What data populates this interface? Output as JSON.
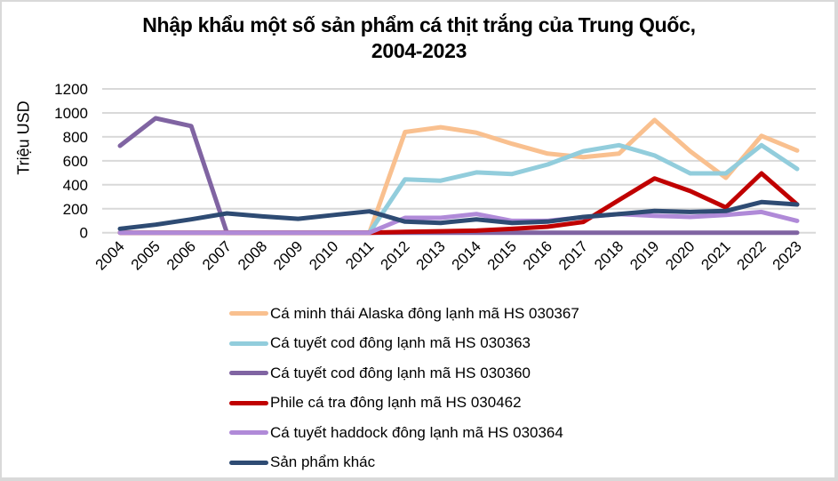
{
  "chart_data": {
    "type": "line",
    "title": "Nhập khẩu một số sản phẩm cá thịt trắng của Trung Quốc, 2004-2023",
    "title_lines": [
      "Nhập khẩu một số sản phẩm cá thịt trắng của Trung Quốc,",
      "2004-2023"
    ],
    "xlabel": "",
    "ylabel": "Triệu USD",
    "ylim": [
      0,
      1200
    ],
    "yticks": [
      0,
      200,
      400,
      600,
      800,
      1000,
      1200
    ],
    "grid": true,
    "legend_position": "bottom",
    "x": [
      "2004",
      "2005",
      "2006",
      "2007",
      "2008",
      "2009",
      "2010",
      "2011",
      "2012",
      "2013",
      "2014",
      "2015",
      "2016",
      "2017",
      "2018",
      "2019",
      "2020",
      "2021",
      "2022",
      "2023"
    ],
    "series": [
      {
        "name": "Cá minh thái Alaska đông lạnh mã HS 030367",
        "color": "#F9C08F",
        "values": [
          0,
          0,
          0,
          0,
          0,
          0,
          0,
          0,
          840,
          880,
          835,
          742,
          660,
          630,
          660,
          940,
          680,
          458,
          808,
          686
        ]
      },
      {
        "name": "Cá tuyết cod đông lạnh mã HS 030363",
        "color": "#92CDDC",
        "values": [
          0,
          0,
          0,
          0,
          0,
          0,
          0,
          0,
          445,
          434,
          503,
          490,
          569,
          680,
          730,
          644,
          495,
          495,
          730,
          532
        ]
      },
      {
        "name": "Cá tuyết cod đông lạnh mã HS 030360",
        "color": "#8064A2",
        "values": [
          725,
          955,
          890,
          0,
          0,
          0,
          0,
          0,
          0,
          0,
          0,
          0,
          0,
          0,
          0,
          0,
          0,
          0,
          0,
          0
        ]
      },
      {
        "name": "Phile cá tra đông lạnh mã HS 030462",
        "color": "#C00000",
        "values": [
          0,
          0,
          0,
          0,
          0,
          0,
          0,
          0,
          7,
          12,
          17,
          32,
          50,
          90,
          272,
          453,
          347,
          211,
          495,
          235
        ]
      },
      {
        "name": "Cá tuyết haddock đông lạnh mã HS 030364",
        "color": "#B08AD8",
        "values": [
          0,
          0,
          0,
          0,
          0,
          0,
          0,
          0,
          124,
          124,
          156,
          99,
          99,
          129,
          156,
          141,
          131,
          148,
          173,
          99
        ]
      },
      {
        "name": "Sản phẩm khác",
        "color": "#2E4B73",
        "values": [
          33,
          67,
          111,
          161,
          136,
          116,
          148,
          178,
          92,
          82,
          111,
          82,
          92,
          131,
          156,
          181,
          173,
          181,
          255,
          235
        ]
      }
    ]
  },
  "colors": {
    "gridline": "#D9D9D9",
    "frame": "#D9D9D9",
    "background": "#FFFFFF"
  }
}
